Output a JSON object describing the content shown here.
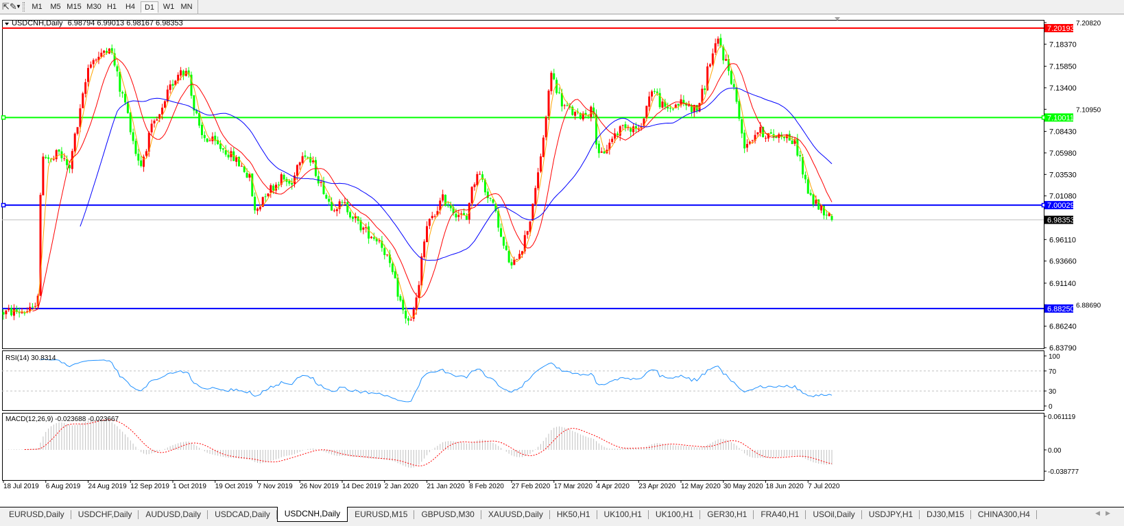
{
  "toolbar": {
    "draw_tool_icon": "cursor-pencil-icon",
    "timeframes": [
      "M1",
      "M5",
      "M15",
      "M30",
      "H1",
      "H4",
      "D1",
      "W1",
      "MN"
    ],
    "active_timeframe": "D1"
  },
  "chart": {
    "symbol_label": "USDCNH,Daily",
    "ohlc_text": "6.98794 6.99013 6.98167 6.98353",
    "current_price": "6.98353"
  },
  "price_axis": {
    "ticks": [
      "7.20820",
      "7.18370",
      "7.15850",
      "7.13400",
      "7.10950",
      "7.08430",
      "7.05980",
      "7.03530",
      "7.01080",
      "6.96110",
      "6.93660",
      "6.91140",
      "6.88690",
      "6.86240",
      "6.83790"
    ]
  },
  "levels": [
    {
      "price": "7.20193",
      "color": "#ff0000",
      "label_text_color": "#ffffff",
      "handles": false
    },
    {
      "price": "7.10011",
      "color": "#00ff00",
      "label_text_color": "#ffffff",
      "handles": true
    },
    {
      "price": "7.00029",
      "color": "#0000ff",
      "label_text_color": "#ffffff",
      "handles": true
    },
    {
      "price": "6.88250",
      "color": "#0000ff",
      "label_text_color": "#ffffff",
      "handles": false
    }
  ],
  "rsi": {
    "label": "RSI(14) 30.8314",
    "ticks": [
      "100",
      "70",
      "30",
      "0"
    ],
    "color": "#1e90ff"
  },
  "macd": {
    "label": "MACD(12,26,9) -0.023688 -0.023667",
    "ticks": [
      "0.061119",
      "0.00",
      "-0.038777"
    ],
    "histogram_color": "#c0c0c0",
    "signal_color": "#ff0000"
  },
  "date_axis": [
    "18 Jul 2019",
    "6 Aug 2019",
    "24 Aug 2019",
    "12 Sep 2019",
    "1 Oct 2019",
    "19 Oct 2019",
    "7 Nov 2019",
    "26 Nov 2019",
    "14 Dec 2019",
    "2 Jan 2020",
    "21 Jan 2020",
    "8 Feb 2020",
    "27 Feb 2020",
    "17 Mar 2020",
    "4 Apr 2020",
    "23 Apr 2020",
    "12 May 2020",
    "30 May 2020",
    "18 Jun 2020",
    "7 Jul 2020"
  ],
  "tabs": [
    "EURUSD,Daily",
    "USDCHF,Daily",
    "AUDUSD,Daily",
    "USDCAD,Daily",
    "USDCNH,Daily",
    "EURUSD,M15",
    "GBPUSD,M30",
    "XAUUSD,Daily",
    "HK50,H1",
    "UK100,H1",
    "UK100,H1",
    "GER30,H1",
    "FRA40,H1",
    "USOil,Daily",
    "USDJPY,H1",
    "DJ30,M15",
    "CHINA300,H4"
  ],
  "active_tab": "USDCNH,Daily",
  "colors": {
    "bull_candle": "#ff0000",
    "bear_candle": "#00ff00",
    "ma_fast": "#ffa500",
    "ma_mid": "#ff0000",
    "ma_slow": "#0000ff"
  },
  "chart_data": {
    "type": "candlestick",
    "symbol": "USDCNH",
    "timeframe": "Daily",
    "ylim": [
      6.8379,
      7.2082
    ],
    "last_bar": {
      "open": 6.98794,
      "high": 6.99013,
      "low": 6.98167,
      "close": 6.98353
    },
    "close_path": [
      [
        "2019-07-18",
        6.878
      ],
      [
        "2019-07-31",
        6.88
      ],
      [
        "2019-08-02",
        6.9
      ],
      [
        "2019-08-05",
        7.06
      ],
      [
        "2019-08-08",
        7.05
      ],
      [
        "2019-08-12",
        7.06
      ],
      [
        "2019-08-16",
        7.04
      ],
      [
        "2019-08-20",
        7.09
      ],
      [
        "2019-08-23",
        7.14
      ],
      [
        "2019-08-26",
        7.165
      ],
      [
        "2019-08-30",
        7.17
      ],
      [
        "2019-09-03",
        7.183
      ],
      [
        "2019-09-06",
        7.148
      ],
      [
        "2019-09-10",
        7.117
      ],
      [
        "2019-09-13",
        7.075
      ],
      [
        "2019-09-17",
        7.046
      ],
      [
        "2019-09-20",
        7.078
      ],
      [
        "2019-09-25",
        7.101
      ],
      [
        "2019-10-01",
        7.14
      ],
      [
        "2019-10-04",
        7.156
      ],
      [
        "2019-10-08",
        7.15
      ],
      [
        "2019-10-10",
        7.109
      ],
      [
        "2019-10-14",
        7.078
      ],
      [
        "2019-10-20",
        7.07
      ],
      [
        "2019-10-28",
        7.054
      ],
      [
        "2019-11-04",
        7.031
      ],
      [
        "2019-11-06",
        6.992
      ],
      [
        "2019-11-11",
        7.015
      ],
      [
        "2019-11-18",
        7.031
      ],
      [
        "2019-11-22",
        7.023
      ],
      [
        "2019-11-27",
        7.062
      ],
      [
        "2019-12-02",
        7.046
      ],
      [
        "2019-12-05",
        7.023
      ],
      [
        "2019-12-10",
        7.0
      ],
      [
        "2019-12-16",
        7.0
      ],
      [
        "2019-12-20",
        6.984
      ],
      [
        "2019-12-26",
        6.968
      ],
      [
        "2019-12-31",
        6.961
      ],
      [
        "2020-01-06",
        6.922
      ],
      [
        "2020-01-10",
        6.879
      ],
      [
        "2020-01-14",
        6.867
      ],
      [
        "2020-01-17",
        6.906
      ],
      [
        "2020-01-21",
        6.976
      ],
      [
        "2020-01-28",
        7.007
      ],
      [
        "2020-02-03",
        6.992
      ],
      [
        "2020-02-07",
        6.984
      ],
      [
        "2020-02-12",
        7.039
      ],
      [
        "2020-02-18",
        7.007
      ],
      [
        "2020-02-24",
        6.953
      ],
      [
        "2020-02-27",
        6.929
      ],
      [
        "2020-03-03",
        6.953
      ],
      [
        "2020-03-09",
        7.015
      ],
      [
        "2020-03-12",
        7.078
      ],
      [
        "2020-03-16",
        7.15
      ],
      [
        "2020-03-20",
        7.117
      ],
      [
        "2020-03-27",
        7.101
      ],
      [
        "2020-04-03",
        7.109
      ],
      [
        "2020-04-06",
        7.054
      ],
      [
        "2020-04-12",
        7.078
      ],
      [
        "2020-04-17",
        7.093
      ],
      [
        "2020-04-24",
        7.085
      ],
      [
        "2020-04-29",
        7.133
      ],
      [
        "2020-05-05",
        7.109
      ],
      [
        "2020-05-12",
        7.117
      ],
      [
        "2020-05-19",
        7.109
      ],
      [
        "2020-05-25",
        7.164
      ],
      [
        "2020-05-28",
        7.187
      ],
      [
        "2020-06-01",
        7.164
      ],
      [
        "2020-06-04",
        7.133
      ],
      [
        "2020-06-09",
        7.07
      ],
      [
        "2020-06-15",
        7.085
      ],
      [
        "2020-06-21",
        7.078
      ],
      [
        "2020-06-27",
        7.082
      ],
      [
        "2020-07-01",
        7.07
      ],
      [
        "2020-07-04",
        7.046
      ],
      [
        "2020-07-08",
        7.007
      ],
      [
        "2020-07-12",
        6.999
      ],
      [
        "2020-07-15",
        6.992
      ],
      [
        "2020-07-17",
        6.98353
      ]
    ],
    "horizontal_lines": [
      7.20193,
      7.10011,
      7.00029,
      6.8825
    ],
    "indicators": [
      "moving averages (orange, red, blue)",
      "RSI(14)",
      "MACD(12,26,9)"
    ]
  }
}
